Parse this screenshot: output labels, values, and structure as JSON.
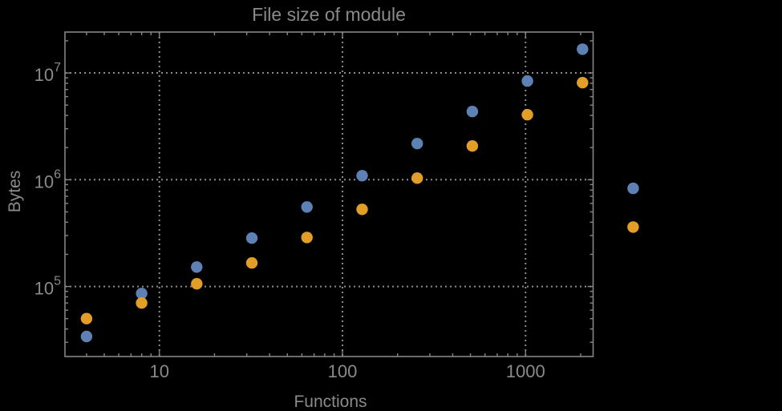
{
  "chart_data": {
    "type": "scatter",
    "title": "File size of module",
    "xlabel": "Functions",
    "ylabel": "Bytes",
    "x_scale": "log",
    "y_scale": "log",
    "grid": "dotted",
    "legend": "none",
    "x_tick_labels": [
      "10",
      "100",
      "1000"
    ],
    "x_tick_logs": [
      1,
      2,
      3
    ],
    "y_tick_base": "10",
    "y_tick_exponents": [
      "5",
      "6",
      "7"
    ],
    "y_tick_logs": [
      5,
      6,
      7
    ],
    "x_range_log": [
      0.4843,
      3.369
    ],
    "y_range_log": [
      4.344,
      7.383
    ],
    "colors": {
      "background": "#000000",
      "frame": "#858585",
      "grid": "#8b8b8b",
      "text": "#8a8a8a",
      "series_blue": "#5e81b5",
      "series_orange": "#e29e27"
    },
    "series": [
      {
        "name": "series-blue",
        "color": "#5e81b5",
        "points": [
          [
            4,
            34000
          ],
          [
            8,
            86000
          ],
          [
            16,
            152000
          ],
          [
            32,
            284000
          ],
          [
            64,
            556000
          ],
          [
            128,
            1090000
          ],
          [
            256,
            2180000
          ],
          [
            512,
            4350000
          ],
          [
            1024,
            8400000
          ],
          [
            2048,
            16700000
          ],
          [
            3870,
            830000
          ]
        ]
      },
      {
        "name": "series-orange",
        "color": "#e29e27",
        "points": [
          [
            4,
            50000
          ],
          [
            8,
            70000
          ],
          [
            16,
            106000
          ],
          [
            32,
            166000
          ],
          [
            64,
            288000
          ],
          [
            128,
            528000
          ],
          [
            256,
            1035000
          ],
          [
            512,
            2070000
          ],
          [
            1024,
            4060000
          ],
          [
            2048,
            8100000
          ],
          [
            3870,
            360000
          ]
        ]
      }
    ]
  }
}
